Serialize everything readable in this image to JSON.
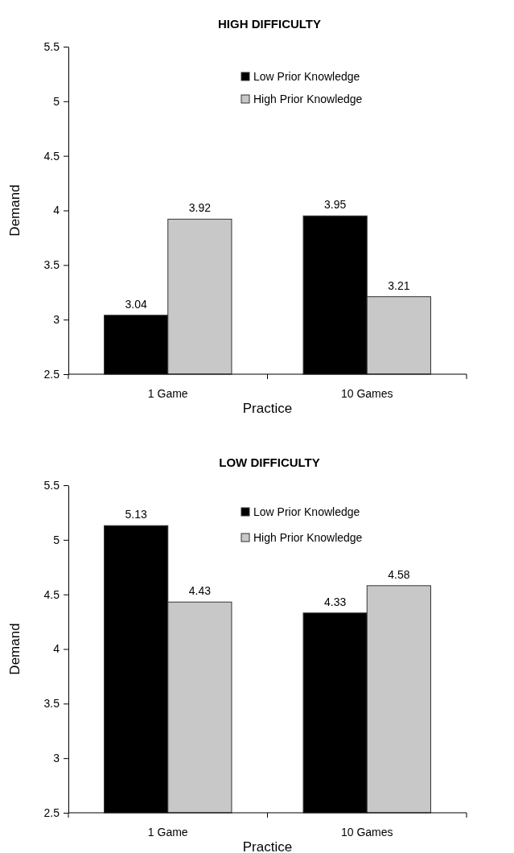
{
  "chart_data": [
    {
      "type": "bar",
      "title": "HIGH DIFFICULTY",
      "xlabel": "Practice",
      "ylabel": "Demand",
      "categories": [
        "1 Game",
        "10 Games"
      ],
      "series": [
        {
          "name": "Low Prior Knowledge",
          "color": "#000000",
          "values": [
            3.04,
            3.95
          ]
        },
        {
          "name": "High Prior Knowledge",
          "color": "#c8c8c8",
          "values": [
            3.92,
            3.21
          ]
        }
      ],
      "ylim": [
        2.5,
        5.5
      ],
      "yticks": [
        "2.5",
        3,
        "3.5",
        4,
        "4.5",
        5,
        "5.5"
      ],
      "data_labels": true,
      "legend": "top",
      "grid": false
    },
    {
      "type": "bar",
      "title": "LOW DIFFICULTY",
      "xlabel": "Practice",
      "ylabel": "Demand",
      "categories": [
        "1 Game",
        "10 Games"
      ],
      "series": [
        {
          "name": "Low Prior Knowledge",
          "color": "#000000",
          "values": [
            5.13,
            4.33
          ]
        },
        {
          "name": "High Prior Knowledge",
          "color": "#c8c8c8",
          "values": [
            4.43,
            4.58
          ]
        }
      ],
      "ylim": [
        2.5,
        5.5
      ],
      "yticks": [
        "2.5",
        3,
        "3.5",
        4,
        "4.5",
        5,
        "5.5"
      ],
      "data_labels": true,
      "legend": "top",
      "grid": false
    }
  ]
}
